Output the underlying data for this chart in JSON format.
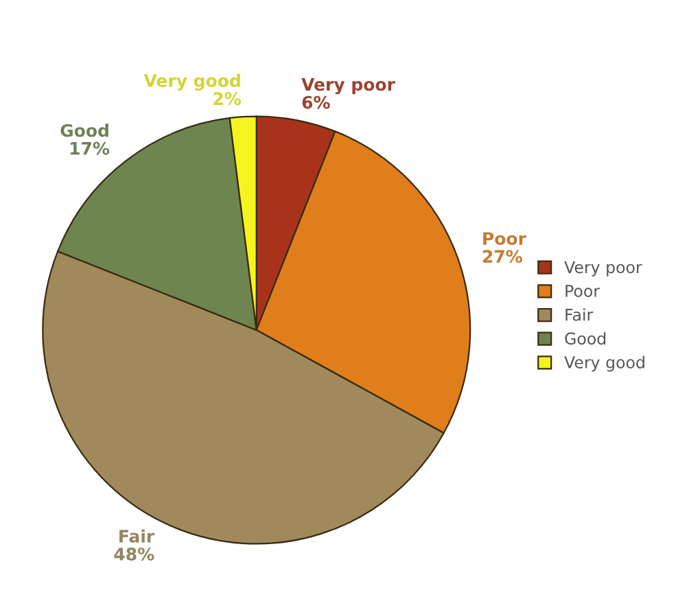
{
  "chart_data": {
    "type": "pie",
    "categories": [
      "Very poor",
      "Poor",
      "Fair",
      "Good",
      "Very good"
    ],
    "values": [
      6,
      27,
      48,
      17,
      2
    ],
    "colors": [
      "#a8331a",
      "#e07e1c",
      "#a08a5c",
      "#6e8550",
      "#f4f51e"
    ],
    "value_labels": [
      "6%",
      "27%",
      "48%",
      "17%",
      "2%"
    ],
    "legend": "right"
  }
}
